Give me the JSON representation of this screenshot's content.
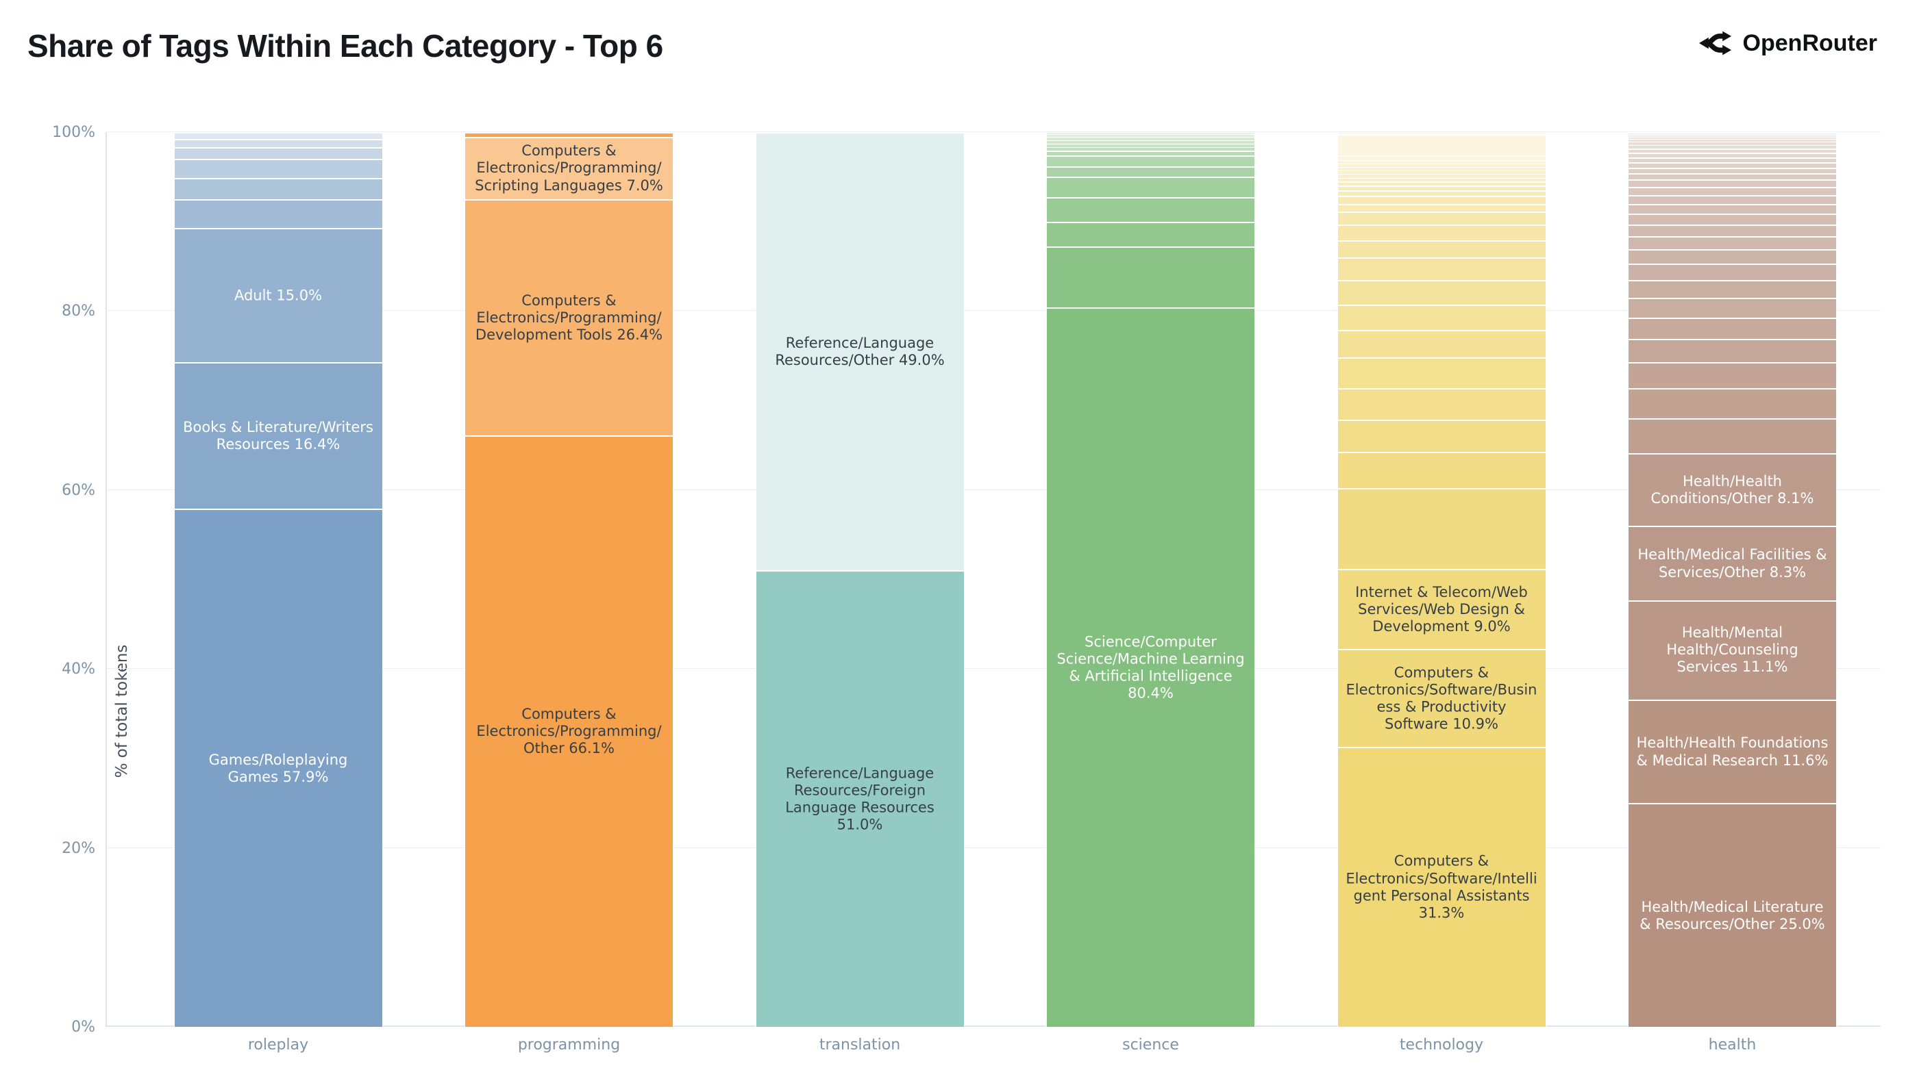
{
  "title": "Share of Tags Within Each Category - Top 6",
  "brand": {
    "name": "OpenRouter",
    "icon": "openrouter-fork-icon",
    "color": "#0e1013"
  },
  "axes": {
    "y_title": "% of total tokens",
    "y_ticks": [
      "0%",
      "20%",
      "40%",
      "60%",
      "80%",
      "100%"
    ],
    "x_labels": [
      "roleplay",
      "programming",
      "translation",
      "science",
      "technology",
      "health"
    ]
  },
  "colors": {
    "background": "#ffffff",
    "title_text": "#16191d",
    "tick_text": "#7e93a8",
    "y_title_text": "#46505b",
    "grid_line": "#edeff2",
    "axis_line": "#dde4ea",
    "segment_gap": "#ffffff",
    "label_dark": "#363f48",
    "label_light": "#ffffff"
  },
  "chart_data": {
    "type": "bar",
    "stacked": true,
    "normalized": "percent",
    "title": "Share of Tags Within Each Category - Top 6",
    "xlabel": "",
    "ylabel": "% of total tokens",
    "ylim": [
      0,
      100
    ],
    "grid": true,
    "legend": false,
    "categories": [
      "roleplay",
      "programming",
      "translation",
      "science",
      "technology",
      "health"
    ],
    "bars": [
      {
        "category": "roleplay",
        "base_color": "#7da0c6",
        "tint_max": 0.75,
        "label_text_color": "#ffffff",
        "segments": [
          {
            "tag": "Games/Roleplaying Games",
            "value": 57.9,
            "text": "Games/Roleplaying Games 57.9%"
          },
          {
            "tag": "Books & Literature/Writers Resources",
            "value": 16.4,
            "text": "Books & Literature/Writers Resources 16.4%"
          },
          {
            "tag": "Adult",
            "value": 15.0,
            "text": "Adult 15.0%"
          },
          {
            "value": 3.2
          },
          {
            "value": 2.4
          },
          {
            "value": 2.1
          },
          {
            "value": 1.3
          },
          {
            "value": 0.9
          },
          {
            "value": 0.8
          }
        ]
      },
      {
        "category": "programming",
        "base_color": "#f6a14b",
        "tint_max": 0.6,
        "label_text_color": "#363f48",
        "segments": [
          {
            "tag": "Computers & Electronics/Programming/Other",
            "value": 66.1,
            "text": "Computers & Electronics/Programming/Other 66.1%"
          },
          {
            "tag": "Computers & Electronics/Programming/Development Tools",
            "value": 26.4,
            "text": "Computers & Electronics/Programming/Development Tools 26.4%"
          },
          {
            "tag": "Computers & Electronics/Programming/Scripting Languages",
            "value": 7.0,
            "text": "Computers & Electronics/Programming/Scripting Languages 7.0%"
          },
          {
            "value": 0.5,
            "color": "#f6a54f"
          }
        ]
      },
      {
        "category": "translation",
        "base_color": "#93cbc3",
        "tint_max": 0.72,
        "label_text_color": "#363f48",
        "segments": [
          {
            "tag": "Reference/Language Resources/Foreign Language Resources",
            "value": 51.0,
            "text": "Reference/Language Resources/Foreign Language Resources 51.0%"
          },
          {
            "tag": "Reference/Language Resources/Other",
            "value": 49.0,
            "text": "Reference/Language Resources/Other 49.0%"
          }
        ]
      },
      {
        "category": "science",
        "base_color": "#83bf7e",
        "tint_max": 0.8,
        "label_text_color": "#ffffff",
        "segments": [
          {
            "tag": "Science/Computer Science/Machine Learning & Artificial Intelligence",
            "value": 80.4,
            "text": "Science/Computer Science/Machine Learning & Artificial Intelligence 80.4%"
          },
          {
            "value": 6.8
          },
          {
            "value": 2.8
          },
          {
            "value": 2.7
          },
          {
            "value": 2.3
          },
          {
            "value": 1.2
          },
          {
            "value": 1.2
          },
          {
            "value": 0.5
          },
          {
            "value": 0.4
          },
          {
            "value": 0.4
          },
          {
            "value": 0.4
          },
          {
            "value": 0.4
          },
          {
            "value": 0.3
          },
          {
            "value": 0.2
          }
        ]
      },
      {
        "category": "technology",
        "base_color": "#f0d876",
        "tint_max": 0.8,
        "label_text_color": "#363f48",
        "segments": [
          {
            "tag": "Computers & Electronics/Software/Intelligent Personal Assistants",
            "value": 31.3,
            "text": "Computers & Electronics/Software/Intelligent Personal Assistants 31.3%"
          },
          {
            "tag": "Computers & Electronics/Software/Business & Productivity Software",
            "value": 10.9,
            "text": "Computers & Electronics/Software/Business & Productivity Software 10.9%"
          },
          {
            "tag": "Internet & Telecom/Web Services/Web Design & Development",
            "value": 9.0,
            "text": "Internet & Telecom/Web Services/Web Design & Development 9.0%"
          },
          {
            "value": 9.0
          },
          {
            "value": 4.1
          },
          {
            "value": 3.6
          },
          {
            "value": 3.5
          },
          {
            "value": 3.4
          },
          {
            "value": 3.1
          },
          {
            "value": 2.8
          },
          {
            "value": 2.8
          },
          {
            "value": 2.5
          },
          {
            "value": 1.9
          },
          {
            "value": 1.8
          },
          {
            "value": 1.4
          },
          {
            "value": 0.9
          },
          {
            "value": 0.9
          },
          {
            "value": 0.6
          },
          {
            "value": 0.5
          },
          {
            "value": 0.5
          },
          {
            "value": 0.4
          },
          {
            "value": 0.4
          },
          {
            "value": 0.4
          },
          {
            "value": 0.4
          },
          {
            "value": 0.4
          },
          {
            "value": 0.4
          },
          {
            "value": 0.4
          },
          {
            "value": 2.5
          },
          {
            "value": 0.2
          }
        ]
      },
      {
        "category": "health",
        "base_color": "#b69180",
        "tint_max": 0.85,
        "label_text_color": "#ffffff",
        "segments": [
          {
            "tag": "Health/Medical Literature & Resources/Other",
            "value": 25.0,
            "text": "Health/Medical Literature & Resources/Other 25.0%"
          },
          {
            "tag": "Health/Health Foundations & Medical Research",
            "value": 11.6,
            "text": "Health/Health Foundations & Medical Research 11.6%"
          },
          {
            "tag": "Health/Mental Health/Counseling Services",
            "value": 11.1,
            "text": "Health/Mental Health/Counseling Services 11.1%"
          },
          {
            "tag": "Health/Medical Facilities & Services/Other",
            "value": 8.3,
            "text": "Health/Medical Facilities & Services/Other 8.3%"
          },
          {
            "tag": "Health/Health Conditions/Other",
            "value": 8.1,
            "text": "Health/Health Conditions/Other 8.1%"
          },
          {
            "value": 3.9
          },
          {
            "value": 3.4
          },
          {
            "value": 2.9
          },
          {
            "value": 2.6
          },
          {
            "value": 2.4
          },
          {
            "value": 2.2
          },
          {
            "value": 2.0
          },
          {
            "value": 1.8
          },
          {
            "value": 1.6
          },
          {
            "value": 1.5
          },
          {
            "value": 1.3
          },
          {
            "value": 1.2
          },
          {
            "value": 1.1
          },
          {
            "value": 1.0
          },
          {
            "value": 0.9
          },
          {
            "value": 0.8
          },
          {
            "value": 0.7
          },
          {
            "value": 0.65
          },
          {
            "value": 0.6
          },
          {
            "value": 0.55
          },
          {
            "value": 0.5
          },
          {
            "value": 0.45
          },
          {
            "value": 0.4
          },
          {
            "value": 0.35
          },
          {
            "value": 0.3
          },
          {
            "value": 0.25
          },
          {
            "value": 0.2
          },
          {
            "value": 0.15
          },
          {
            "value": 0.1
          },
          {
            "value": 0.05
          }
        ]
      }
    ]
  }
}
